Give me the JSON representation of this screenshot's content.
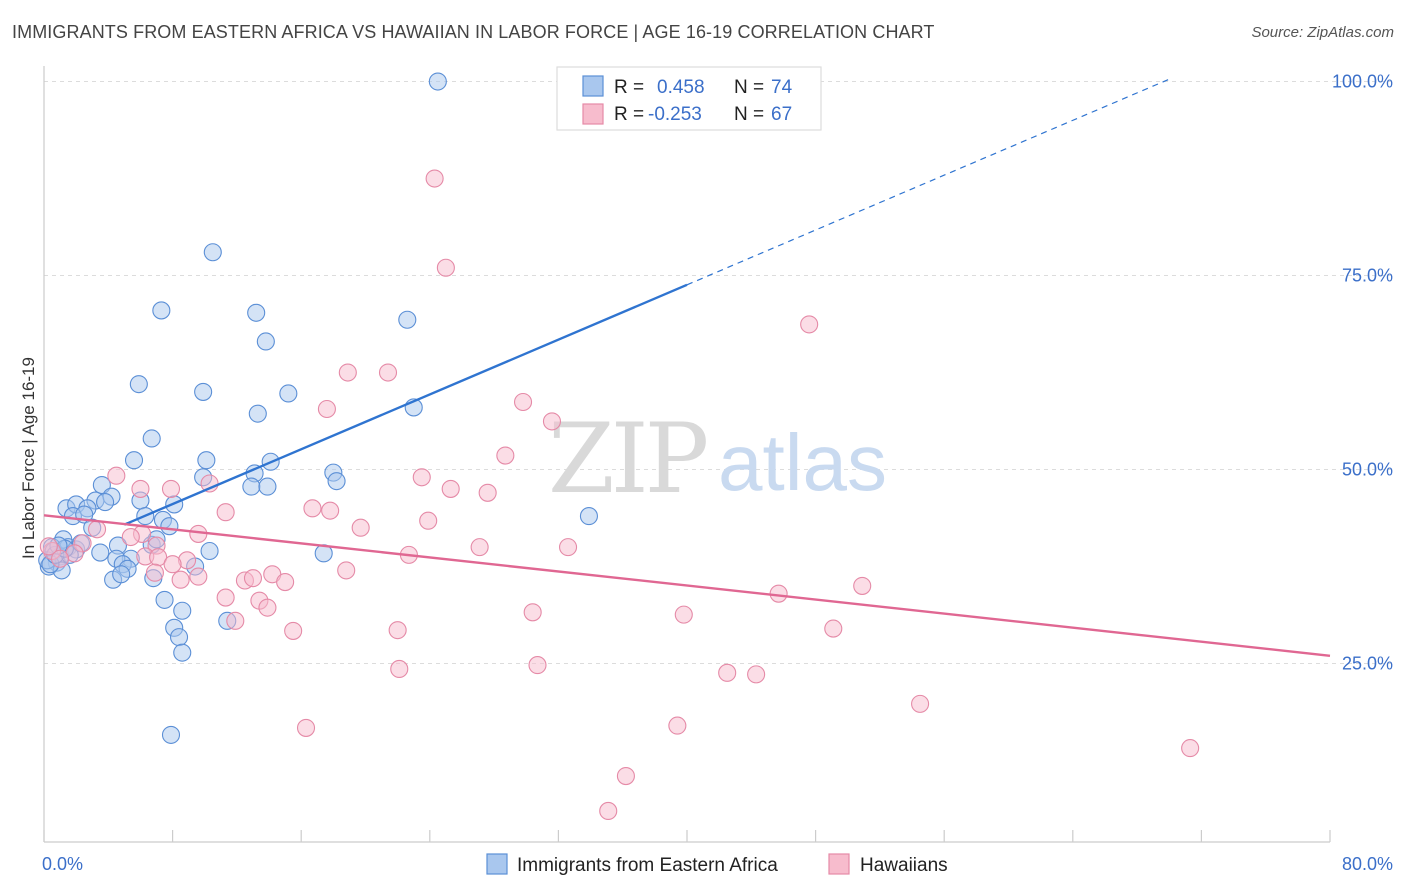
{
  "header": {
    "title": "IMMIGRANTS FROM EASTERN AFRICA VS HAWAIIAN IN LABOR FORCE | AGE 16-19 CORRELATION CHART",
    "source": "Source: ZipAtlas.com"
  },
  "watermark": {
    "zip": "ZIP",
    "atlas": "atlas"
  },
  "legend": {
    "r_label": "R =",
    "n_label": "N =",
    "rows": [
      {
        "r": "0.458",
        "n": "74"
      },
      {
        "r": "-0.253",
        "n": "67"
      }
    ]
  },
  "chart_data": {
    "type": "scatter",
    "title": "IMMIGRANTS FROM EASTERN AFRICA VS HAWAIIAN IN LABOR FORCE | AGE 16-19 CORRELATION CHART",
    "xlabel": "",
    "ylabel": "In Labor Force | Age 16-19",
    "xlim": [
      0,
      80
    ],
    "ylim": [
      2,
      102
    ],
    "x_tick_labels": [
      "0.0%",
      "80.0%"
    ],
    "y_ticks": [
      25,
      50,
      75,
      100
    ],
    "y_tick_labels": [
      "25.0%",
      "50.0%",
      "75.0%",
      "100.0%"
    ],
    "grid": true,
    "legend_position": "top-center",
    "colors": {
      "blue_fill": "#a9c7ee",
      "blue_stroke": "#5b8fd6",
      "blue_line": "#2f74d0",
      "pink_fill": "#f7bccd",
      "pink_stroke": "#e58aa7",
      "pink_line": "#e06792"
    },
    "series": [
      {
        "name": "Immigrants from Eastern Africa",
        "color": "#5b8fd6",
        "points": [
          [
            24.5,
            100
          ],
          [
            10.5,
            78
          ],
          [
            7.3,
            70.5
          ],
          [
            13.2,
            70.2
          ],
          [
            22.6,
            69.3
          ],
          [
            13.8,
            66.5
          ],
          [
            5.9,
            61
          ],
          [
            9.9,
            60
          ],
          [
            15.2,
            59.8
          ],
          [
            23.0,
            58
          ],
          [
            13.3,
            57.2
          ],
          [
            6.7,
            54
          ],
          [
            5.6,
            51.2
          ],
          [
            10.1,
            51.2
          ],
          [
            14.1,
            51
          ],
          [
            13.1,
            49.5
          ],
          [
            9.9,
            49
          ],
          [
            18.0,
            49.6
          ],
          [
            18.2,
            48.5
          ],
          [
            3.6,
            48
          ],
          [
            12.9,
            47.8
          ],
          [
            13.9,
            47.8
          ],
          [
            1.4,
            45
          ],
          [
            2.0,
            45.5
          ],
          [
            3.2,
            46
          ],
          [
            4.2,
            46.5
          ],
          [
            6.0,
            46
          ],
          [
            8.1,
            45.5
          ],
          [
            2.7,
            45
          ],
          [
            3.8,
            45.8
          ],
          [
            1.8,
            44
          ],
          [
            2.5,
            44.2
          ],
          [
            6.3,
            44
          ],
          [
            7.4,
            43.5
          ],
          [
            3.0,
            42.5
          ],
          [
            7.8,
            42.7
          ],
          [
            1.2,
            41
          ],
          [
            0.5,
            40
          ],
          [
            1.5,
            40
          ],
          [
            2.0,
            39.7
          ],
          [
            4.6,
            40.2
          ],
          [
            6.7,
            40.3
          ],
          [
            7.0,
            41
          ],
          [
            0.6,
            39.5
          ],
          [
            1.0,
            38.8
          ],
          [
            3.5,
            39.3
          ],
          [
            5.4,
            38.5
          ],
          [
            0.8,
            38
          ],
          [
            1.6,
            39
          ],
          [
            4.5,
            38.5
          ],
          [
            4.9,
            37.8
          ],
          [
            0.3,
            37.5
          ],
          [
            1.1,
            37
          ],
          [
            5.2,
            37.2
          ],
          [
            9.4,
            37.5
          ],
          [
            10.3,
            39.5
          ],
          [
            17.4,
            39.2
          ],
          [
            4.3,
            35.8
          ],
          [
            4.8,
            36.5
          ],
          [
            6.8,
            36
          ],
          [
            7.5,
            33.2
          ],
          [
            8.6,
            31.8
          ],
          [
            8.1,
            29.6
          ],
          [
            8.4,
            28.4
          ],
          [
            11.4,
            30.5
          ],
          [
            8.6,
            26.4
          ],
          [
            7.9,
            15.8
          ],
          [
            33.9,
            44
          ],
          [
            0.2,
            38.3
          ],
          [
            0.4,
            37.8
          ],
          [
            0.7,
            39
          ],
          [
            1.3,
            39.8
          ],
          [
            2.3,
            40.5
          ],
          [
            0.9,
            40.2
          ]
        ],
        "trend": {
          "x0": 5,
          "y0": 42.9,
          "x1": 40,
          "y1": 73.8,
          "dash_to_x": 70,
          "dash_to_y": 100.3
        }
      },
      {
        "name": "Hawaiians",
        "color": "#e58aa7",
        "points": [
          [
            24.3,
            87.5
          ],
          [
            25.0,
            76
          ],
          [
            47.6,
            68.7
          ],
          [
            18.9,
            62.5
          ],
          [
            21.4,
            62.5
          ],
          [
            17.6,
            57.8
          ],
          [
            29.8,
            58.7
          ],
          [
            31.6,
            56.2
          ],
          [
            28.7,
            51.8
          ],
          [
            4.5,
            49.2
          ],
          [
            23.5,
            49
          ],
          [
            25.3,
            47.5
          ],
          [
            27.6,
            47
          ],
          [
            6.0,
            47.5
          ],
          [
            7.9,
            47.5
          ],
          [
            10.3,
            48.2
          ],
          [
            16.7,
            45
          ],
          [
            17.8,
            44.7
          ],
          [
            11.3,
            44.5
          ],
          [
            23.9,
            43.4
          ],
          [
            19.7,
            42.5
          ],
          [
            3.3,
            42.3
          ],
          [
            6.1,
            41.7
          ],
          [
            9.6,
            41.7
          ],
          [
            2.4,
            40.5
          ],
          [
            5.4,
            41.3
          ],
          [
            7.0,
            40.2
          ],
          [
            27.1,
            40
          ],
          [
            32.6,
            40
          ],
          [
            22.7,
            39
          ],
          [
            0.5,
            39.5
          ],
          [
            1.9,
            39.2
          ],
          [
            6.3,
            38.8
          ],
          [
            7.1,
            38.7
          ],
          [
            8.9,
            38.3
          ],
          [
            8.0,
            37.8
          ],
          [
            18.8,
            37
          ],
          [
            6.9,
            36.7
          ],
          [
            14.2,
            36.5
          ],
          [
            9.6,
            36.2
          ],
          [
            8.5,
            35.8
          ],
          [
            12.5,
            35.7
          ],
          [
            15.0,
            35.5
          ],
          [
            13.0,
            36
          ],
          [
            11.3,
            33.5
          ],
          [
            13.4,
            33.1
          ],
          [
            45.7,
            34
          ],
          [
            50.9,
            35
          ],
          [
            13.9,
            32.2
          ],
          [
            30.4,
            31.6
          ],
          [
            39.8,
            31.3
          ],
          [
            11.9,
            30.5
          ],
          [
            15.5,
            29.2
          ],
          [
            22.0,
            29.3
          ],
          [
            49.1,
            29.5
          ],
          [
            30.7,
            24.8
          ],
          [
            22.1,
            24.3
          ],
          [
            42.5,
            23.8
          ],
          [
            44.3,
            23.6
          ],
          [
            54.5,
            19.8
          ],
          [
            16.3,
            16.7
          ],
          [
            39.4,
            17
          ],
          [
            71.3,
            14.1
          ],
          [
            36.2,
            10.5
          ],
          [
            35.1,
            6
          ],
          [
            1.0,
            38.5
          ],
          [
            0.3,
            40.1
          ]
        ],
        "trend": {
          "x0": 0,
          "y0": 44.1,
          "x1": 80,
          "y1": 26.0
        }
      }
    ]
  }
}
